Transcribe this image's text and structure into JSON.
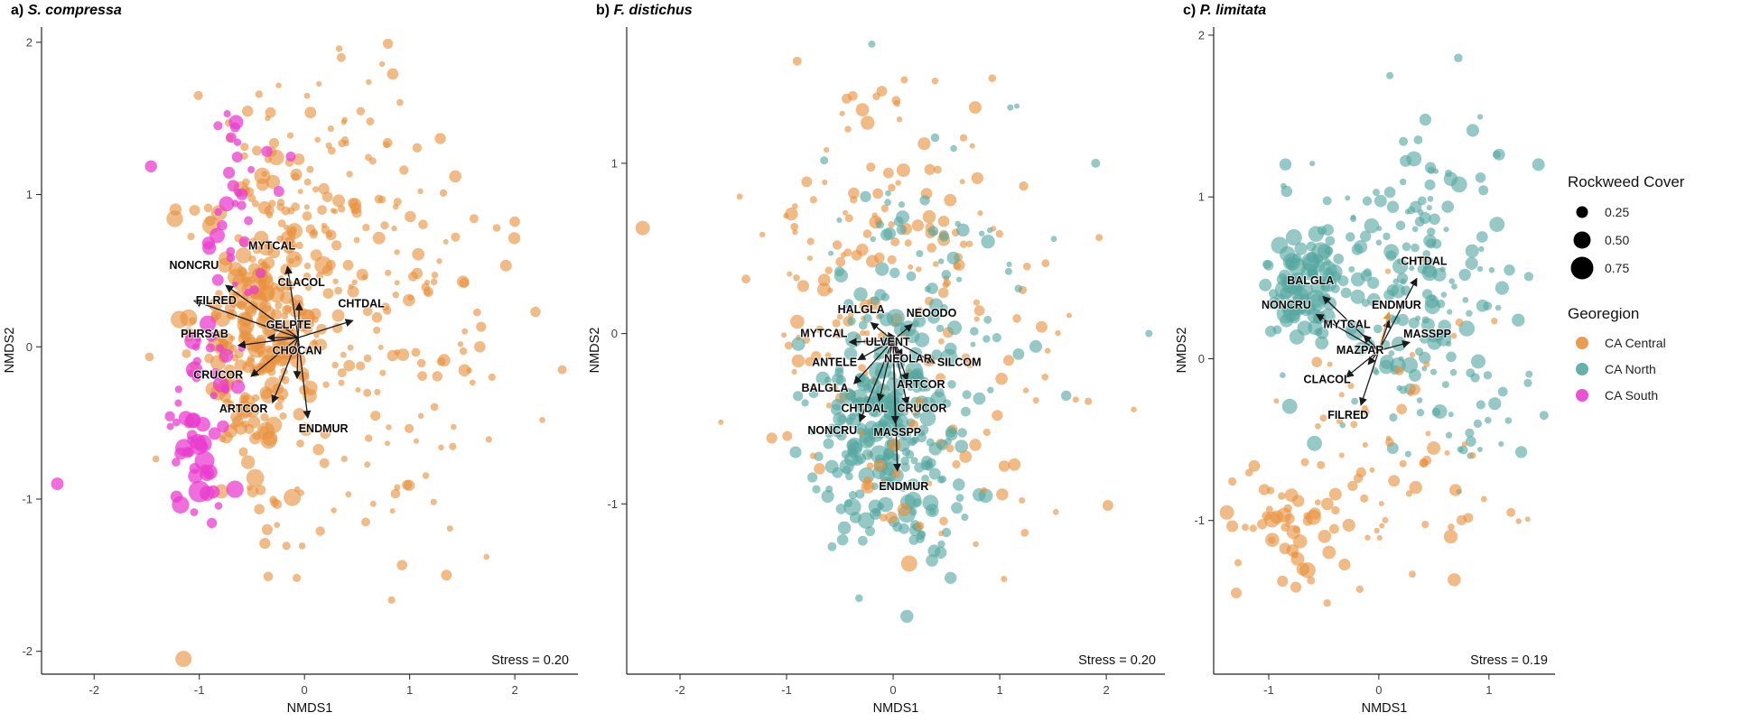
{
  "legend": {
    "size_title": "Rockweed Cover",
    "sizes": [
      {
        "label": "0.25",
        "r": 6.5
      },
      {
        "label": "0.50",
        "r": 9.5
      },
      {
        "label": "0.75",
        "r": 12.5
      }
    ],
    "georegion_title": "Georegion",
    "groups": [
      {
        "key": "central",
        "label": "CA Central",
        "color": "#E8913D",
        "opacity": 0.62
      },
      {
        "key": "north",
        "label": "CA North",
        "color": "#56A8A2",
        "opacity": 0.62
      },
      {
        "key": "south",
        "label": "CA South",
        "color": "#E93ECF",
        "opacity": 0.75
      }
    ]
  },
  "chart_data": [
    {
      "id": "a",
      "type": "scatter",
      "title_prefix": "a)",
      "title_species": "S. compressa",
      "xlabel": "NMDS1",
      "ylabel": "NMDS2",
      "stress": 0.2,
      "stress_label": "Stress = 0.20",
      "xlim": [
        -2.5,
        2.6
      ],
      "ylim": [
        -2.15,
        2.1
      ],
      "xticks": [
        -2,
        -1,
        0,
        1,
        2
      ],
      "yticks": [
        -2,
        -1,
        0,
        1,
        2
      ],
      "seed": 7,
      "vector_origin": [
        -0.06,
        0.06
      ],
      "clusters": [
        {
          "group": "central",
          "n": 140,
          "cx": 0.5,
          "cy": 0.4,
          "sx": 0.7,
          "sy": 0.55,
          "rmin": 3,
          "rmax": 7
        },
        {
          "group": "central",
          "n": 55,
          "cx": 0.3,
          "cy": 1.2,
          "sx": 0.5,
          "sy": 0.35,
          "rmin": 3,
          "rmax": 7
        },
        {
          "group": "central",
          "n": 45,
          "cx": 0.95,
          "cy": -0.4,
          "sx": 0.6,
          "sy": 0.5,
          "rmin": 3,
          "rmax": 7
        },
        {
          "group": "central",
          "n": 255,
          "cx": -0.42,
          "cy": 0.12,
          "sx": 0.3,
          "sy": 0.48,
          "rmin": 4,
          "rmax": 10
        },
        {
          "group": "central",
          "n": 18,
          "cx": 0.1,
          "cy": -1.25,
          "sx": 0.55,
          "sy": 0.3,
          "rmin": 3,
          "rmax": 7
        },
        {
          "group": "south",
          "n": 55,
          "cx": -0.95,
          "cy": -0.55,
          "sx": 0.14,
          "sy": 0.42,
          "rmin": 4,
          "rmax": 11
        },
        {
          "group": "south",
          "n": 26,
          "cx": -0.6,
          "cy": 1.05,
          "sx": 0.27,
          "sy": 0.3,
          "rmin": 4,
          "rmax": 9
        },
        {
          "group": "south",
          "n": 10,
          "cx": -0.8,
          "cy": 0.35,
          "sx": 0.18,
          "sy": 0.28,
          "rmin": 3,
          "rmax": 7
        }
      ],
      "extra_points": [
        {
          "group": "central",
          "x": -1.15,
          "y": -2.05,
          "r": 9
        },
        {
          "group": "south",
          "x": -2.35,
          "y": -0.9,
          "r": 7
        },
        {
          "group": "central",
          "x": 2.45,
          "y": -0.15,
          "r": 5
        },
        {
          "group": "central",
          "x": 0.35,
          "y": 1.9,
          "r": 5
        },
        {
          "group": "central",
          "x": 1.35,
          "y": -1.5,
          "r": 6
        },
        {
          "group": "south",
          "x": -1.0,
          "y": -0.95,
          "r": 12
        },
        {
          "group": "south",
          "x": -0.95,
          "y": -0.75,
          "r": 11
        }
      ],
      "vectors": [
        {
          "label": "MYTCAL",
          "tip": [
            -0.16,
            0.52
          ],
          "label_pos": [
            -0.31,
            0.64
          ]
        },
        {
          "label": "NONCRU",
          "tip": [
            -0.74,
            0.4
          ],
          "label_pos": [
            -1.05,
            0.51
          ]
        },
        {
          "label": "CLACOL",
          "tip": [
            -0.05,
            0.28
          ],
          "label_pos": [
            -0.03,
            0.4
          ]
        },
        {
          "label": "FILRED",
          "tip": [
            -1.04,
            0.3
          ],
          "label_pos": [
            -0.84,
            0.28
          ]
        },
        {
          "label": "CHTDAL",
          "tip": [
            0.45,
            0.17
          ],
          "label_pos": [
            0.54,
            0.26
          ]
        },
        {
          "label": "GELPTE",
          "tip": [
            -0.34,
            0.06
          ],
          "label_pos": [
            -0.15,
            0.12
          ]
        },
        {
          "label": "PHRSAB",
          "tip": [
            -0.62,
            0.01
          ],
          "label_pos": [
            -0.95,
            0.06
          ]
        },
        {
          "label": "CHOCAN",
          "tip": [
            -0.07,
            -0.2
          ],
          "label_pos": [
            -0.07,
            -0.05
          ]
        },
        {
          "label": "CRUCOR",
          "tip": [
            -0.5,
            -0.19
          ],
          "label_pos": [
            -0.82,
            -0.21
          ]
        },
        {
          "label": "ARTCOR",
          "tip": [
            -0.3,
            -0.36
          ],
          "label_pos": [
            -0.58,
            -0.43
          ]
        },
        {
          "label": "ENDMUR",
          "tip": [
            0.03,
            -0.46
          ],
          "label_pos": [
            0.18,
            -0.56
          ]
        }
      ]
    },
    {
      "id": "b",
      "type": "scatter",
      "title_prefix": "b)",
      "title_species": "F. distichus",
      "xlabel": "NMDS1",
      "ylabel": "NMDS2",
      "stress": 0.2,
      "stress_label": "Stress = 0.20",
      "xlim": [
        -2.5,
        2.55
      ],
      "ylim": [
        -2.0,
        1.8
      ],
      "xticks": [
        -2,
        -1,
        0,
        1,
        2
      ],
      "yticks": [
        -1,
        0,
        1
      ],
      "seed": 11,
      "vector_origin": [
        0.0,
        -0.04
      ],
      "clusters": [
        {
          "group": "central",
          "n": 80,
          "cx": 0.0,
          "cy": 0.8,
          "sx": 0.55,
          "sy": 0.42,
          "rmin": 3,
          "rmax": 8
        },
        {
          "group": "central",
          "n": 55,
          "cx": -0.5,
          "cy": 0.05,
          "sx": 0.45,
          "sy": 0.5,
          "rmin": 3,
          "rmax": 8
        },
        {
          "group": "central",
          "n": 50,
          "cx": 0.8,
          "cy": -0.2,
          "sx": 0.6,
          "sy": 0.5,
          "rmin": 3,
          "rmax": 7
        },
        {
          "group": "north",
          "n": 75,
          "cx": 0.35,
          "cy": 0.3,
          "sx": 0.5,
          "sy": 0.5,
          "rmin": 3,
          "rmax": 8
        },
        {
          "group": "north",
          "n": 215,
          "cx": -0.12,
          "cy": -0.55,
          "sx": 0.32,
          "sy": 0.33,
          "rmin": 4,
          "rmax": 10
        },
        {
          "group": "north",
          "n": 35,
          "cx": 0.2,
          "cy": -1.0,
          "sx": 0.3,
          "sy": 0.2,
          "rmin": 4,
          "rmax": 10
        },
        {
          "group": "central",
          "n": 25,
          "cx": 0.1,
          "cy": -0.9,
          "sx": 0.45,
          "sy": 0.25,
          "rmin": 3,
          "rmax": 8
        }
      ],
      "extra_points": [
        {
          "group": "central",
          "x": -2.35,
          "y": 0.62,
          "r": 8
        },
        {
          "group": "north",
          "x": 2.4,
          "y": 0.0,
          "r": 4
        },
        {
          "group": "central",
          "x": 0.15,
          "y": -1.35,
          "r": 9
        },
        {
          "group": "north",
          "x": -0.2,
          "y": 1.7,
          "r": 4
        },
        {
          "group": "central",
          "x": -0.9,
          "y": 1.6,
          "r": 5
        },
        {
          "group": "north",
          "x": 1.9,
          "y": 1.0,
          "r": 5
        },
        {
          "group": "north",
          "x": -0.05,
          "y": 1.85,
          "r": 4
        }
      ],
      "vectors": [
        {
          "label": "HALGLA",
          "tip": [
            -0.2,
            0.06
          ],
          "label_pos": [
            -0.3,
            0.12
          ]
        },
        {
          "label": "NEOODO",
          "tip": [
            0.17,
            0.05
          ],
          "label_pos": [
            0.36,
            0.1
          ]
        },
        {
          "label": "MYTCAL",
          "tip": [
            -0.4,
            -0.05
          ],
          "label_pos": [
            -0.65,
            -0.02
          ]
        },
        {
          "label": "ULVENT",
          "tip": [
            -0.04,
            0.0
          ],
          "label_pos": [
            -0.05,
            -0.07
          ]
        },
        {
          "label": "NEOLAR",
          "tip": [
            0.08,
            -0.13
          ],
          "label_pos": [
            0.14,
            -0.17
          ]
        },
        {
          "label": "SILCOM",
          "tip": [
            0.38,
            -0.17
          ],
          "label_pos": [
            0.62,
            -0.19
          ]
        },
        {
          "label": "ANTELE",
          "tip": [
            -0.32,
            -0.15
          ],
          "label_pos": [
            -0.55,
            -0.19
          ]
        },
        {
          "label": "BALGLA",
          "tip": [
            -0.36,
            -0.29
          ],
          "label_pos": [
            -0.64,
            -0.34
          ]
        },
        {
          "label": "ARTCOR",
          "tip": [
            0.13,
            -0.27
          ],
          "label_pos": [
            0.26,
            -0.32
          ]
        },
        {
          "label": "CHTDAL",
          "tip": [
            -0.13,
            -0.39
          ],
          "label_pos": [
            -0.27,
            -0.46
          ]
        },
        {
          "label": "CRUCOR",
          "tip": [
            0.13,
            -0.41
          ],
          "label_pos": [
            0.27,
            -0.46
          ]
        },
        {
          "label": "NONCRU",
          "tip": [
            -0.31,
            -0.51
          ],
          "label_pos": [
            -0.57,
            -0.59
          ]
        },
        {
          "label": "MASSPP",
          "tip": [
            0.02,
            -0.52
          ],
          "label_pos": [
            0.04,
            -0.6
          ]
        },
        {
          "label": "ENDMUR",
          "tip": [
            0.04,
            -0.8
          ],
          "label_pos": [
            0.1,
            -0.92
          ]
        }
      ]
    },
    {
      "id": "c",
      "type": "scatter",
      "title_prefix": "c)",
      "title_species": "P. limitata",
      "xlabel": "NMDS1",
      "ylabel": "NMDS2",
      "stress": 0.19,
      "stress_label": "Stress = 0.19",
      "xlim": [
        -1.5,
        1.6
      ],
      "ylim": [
        -1.95,
        2.05
      ],
      "xticks": [
        -1,
        0,
        1
      ],
      "yticks": [
        -1,
        0,
        1,
        2
      ],
      "seed": 23,
      "vector_origin": [
        0.0,
        0.05
      ],
      "clusters": [
        {
          "group": "north",
          "n": 150,
          "cx": 0.35,
          "cy": 0.35,
          "sx": 0.5,
          "sy": 0.4,
          "rmin": 3,
          "rmax": 9
        },
        {
          "group": "north",
          "n": 85,
          "cx": -0.68,
          "cy": 0.5,
          "sx": 0.17,
          "sy": 0.17,
          "rmin": 5,
          "rmax": 11
        },
        {
          "group": "north",
          "n": 26,
          "cx": 0.35,
          "cy": 1.05,
          "sx": 0.45,
          "sy": 0.28,
          "rmin": 3,
          "rmax": 8
        },
        {
          "group": "north",
          "n": 20,
          "cx": 0.85,
          "cy": -0.45,
          "sx": 0.35,
          "sy": 0.25,
          "rmin": 3,
          "rmax": 7
        },
        {
          "group": "central",
          "n": 45,
          "cx": -0.8,
          "cy": -1.0,
          "sx": 0.27,
          "sy": 0.22,
          "rmin": 4,
          "rmax": 9
        },
        {
          "group": "central",
          "n": 50,
          "cx": 0.05,
          "cy": -0.8,
          "sx": 0.5,
          "sy": 0.3,
          "rmin": 3,
          "rmax": 8
        },
        {
          "group": "central",
          "n": 12,
          "cx": -0.3,
          "cy": -0.35,
          "sx": 0.3,
          "sy": 0.18,
          "rmin": 3,
          "rmax": 6
        },
        {
          "group": "central",
          "n": 8,
          "cx": 0.25,
          "cy": 0.2,
          "sx": 0.3,
          "sy": 0.25,
          "rmin": 3,
          "rmax": 5
        }
      ],
      "extra_points": [
        {
          "group": "central",
          "x": -1.38,
          "y": -0.95,
          "r": 8
        },
        {
          "group": "north",
          "x": 1.5,
          "y": -0.35,
          "r": 5
        },
        {
          "group": "north",
          "x": 0.1,
          "y": 1.75,
          "r": 4
        },
        {
          "group": "north",
          "x": 1.45,
          "y": 1.2,
          "r": 7
        },
        {
          "group": "central",
          "x": 1.2,
          "y": -0.95,
          "r": 5
        }
      ],
      "vectors": [
        {
          "label": "CHTDAL",
          "tip": [
            0.34,
            0.49
          ],
          "label_pos": [
            0.41,
            0.58
          ]
        },
        {
          "label": "BALGLA",
          "tip": [
            -0.5,
            0.38
          ],
          "label_pos": [
            -0.62,
            0.46
          ]
        },
        {
          "label": "NONCRU",
          "tip": [
            -0.56,
            0.27
          ],
          "label_pos": [
            -0.84,
            0.31
          ]
        },
        {
          "label": "ENDMUR",
          "tip": [
            0.09,
            0.23
          ],
          "label_pos": [
            0.16,
            0.31
          ]
        },
        {
          "label": "MYTCAL",
          "tip": [
            -0.13,
            0.14
          ],
          "label_pos": [
            -0.29,
            0.19
          ]
        },
        {
          "label": "MASSPP",
          "tip": [
            0.27,
            0.1
          ],
          "label_pos": [
            0.44,
            0.13
          ]
        },
        {
          "label": "MAZPAR",
          "tip": [
            -0.09,
            -0.03
          ],
          "label_pos": [
            -0.17,
            0.03
          ]
        },
        {
          "label": "CLACOL",
          "tip": [
            -0.29,
            -0.11
          ],
          "label_pos": [
            -0.47,
            -0.15
          ]
        },
        {
          "label": "FILRED",
          "tip": [
            -0.16,
            -0.28
          ],
          "label_pos": [
            -0.28,
            -0.37
          ]
        },
        {
          "label": "",
          "tip": [
            0.09,
            0.28
          ],
          "label_pos": [
            0.09,
            0.28
          ],
          "color": "#E8913D"
        }
      ]
    }
  ]
}
